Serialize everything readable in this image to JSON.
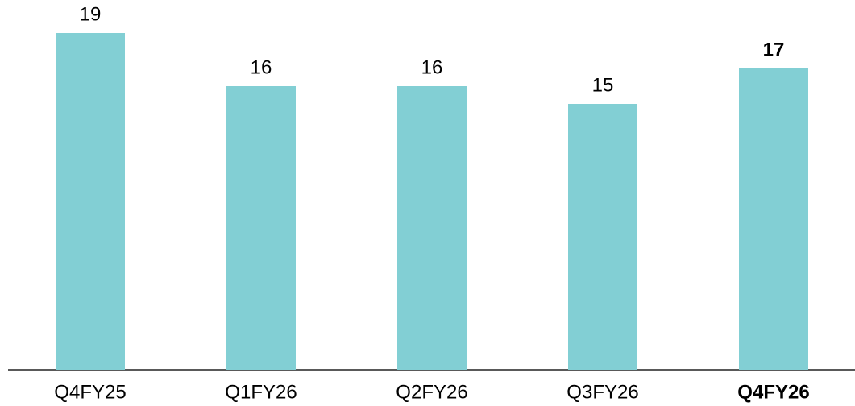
{
  "chart_data": {
    "type": "bar",
    "categories": [
      "Q4FY25",
      "Q1FY26",
      "Q2FY26",
      "Q3FY26",
      "Q4FY26"
    ],
    "values": [
      19,
      16,
      16,
      15,
      17
    ],
    "color": "#82cfd4",
    "ylim": [
      0,
      20
    ]
  }
}
